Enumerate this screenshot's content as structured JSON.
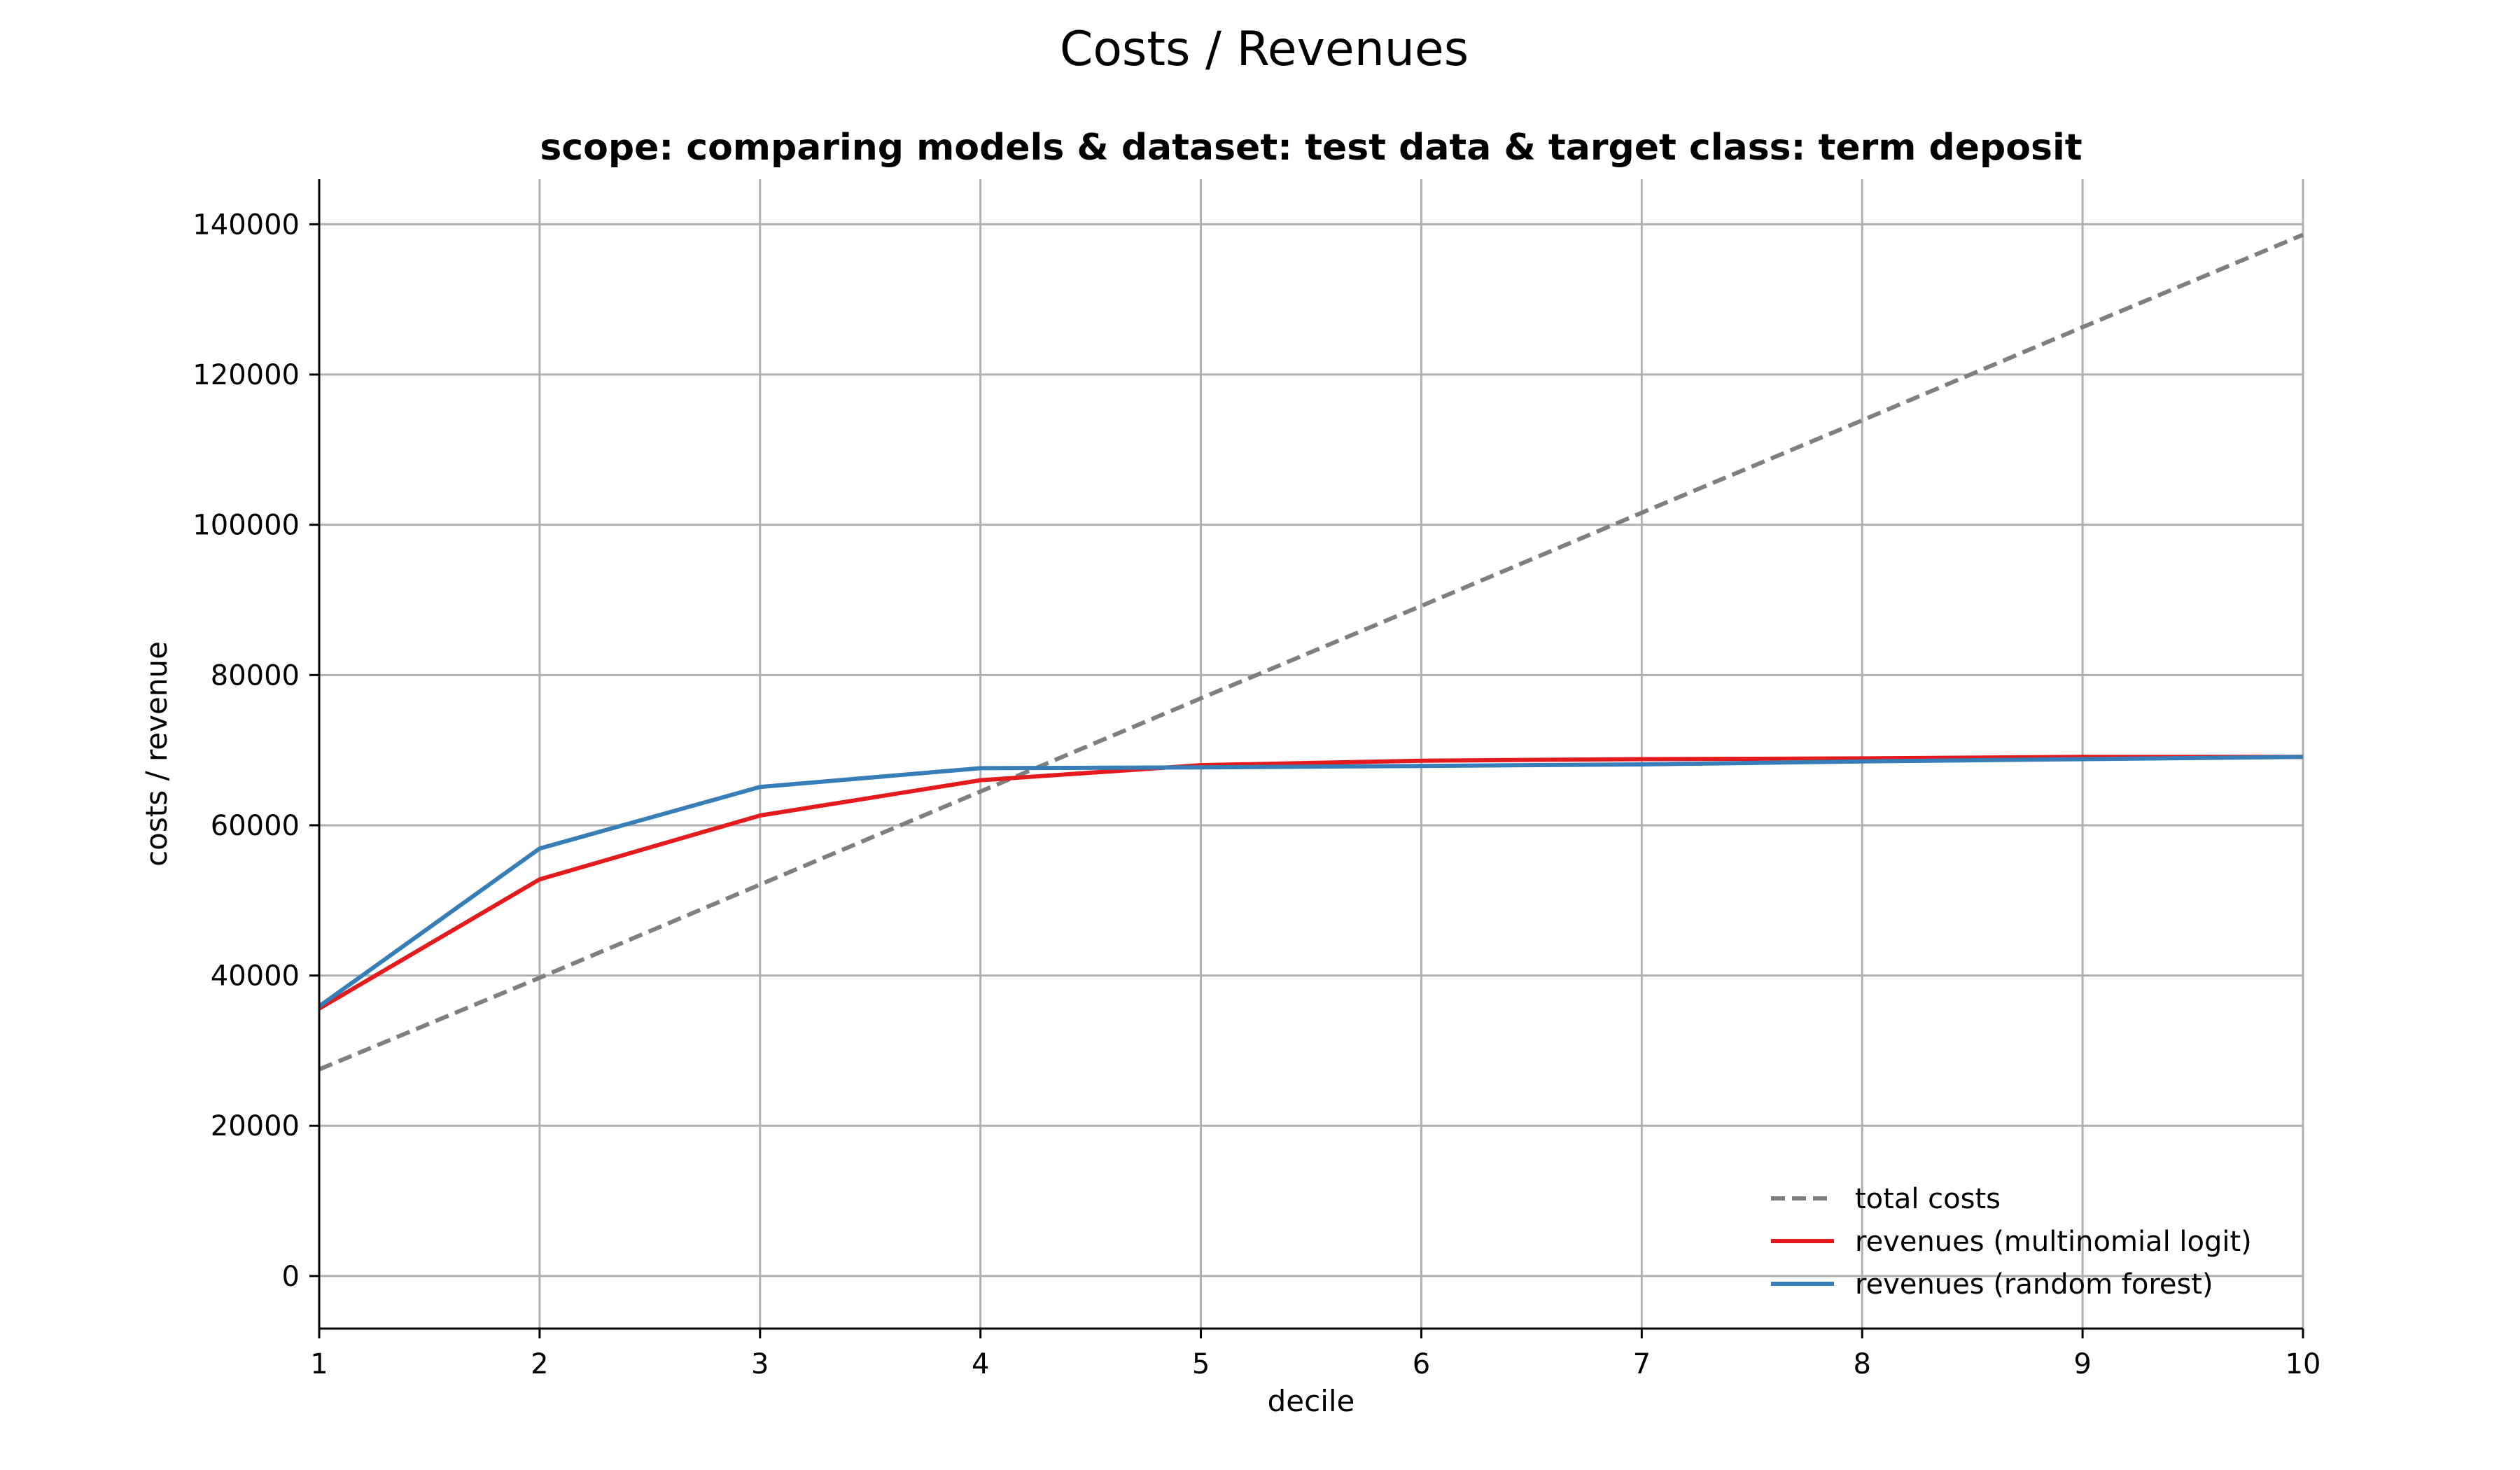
{
  "chart_data": {
    "type": "line",
    "title": "Costs / Revenues",
    "subtitle": "scope: comparing models & dataset: test data & target class: term deposit",
    "xlabel": "decile",
    "ylabel": "costs / revenue",
    "xlim": [
      1,
      10
    ],
    "ylim": [
      -7000,
      146000
    ],
    "x": [
      1,
      2,
      3,
      4,
      5,
      6,
      7,
      8,
      9,
      10
    ],
    "xticks": [
      "1",
      "2",
      "3",
      "4",
      "5",
      "6",
      "7",
      "8",
      "9",
      "10"
    ],
    "yticks": [
      0,
      20000,
      40000,
      60000,
      80000,
      100000,
      120000,
      140000
    ],
    "ytick_labels": [
      "0",
      "20000",
      "40000",
      "60000",
      "80000",
      "100000",
      "120000",
      "140000"
    ],
    "grid": true,
    "legend_position": "bottom-right",
    "series": [
      {
        "name": "total costs",
        "color": "#7f7f7f",
        "style": "dashed",
        "values": [
          27500,
          39700,
          52100,
          64500,
          76900,
          89200,
          101600,
          113900,
          126300,
          138600
        ]
      },
      {
        "name": "revenues (multinomial logit)",
        "color": "#e41a1c",
        "style": "solid",
        "values": [
          35600,
          52800,
          61300,
          66000,
          68000,
          68600,
          68800,
          68900,
          69100,
          69100
        ]
      },
      {
        "name": "revenues (random forest)",
        "color": "#377eb8",
        "style": "solid",
        "values": [
          35900,
          56900,
          65100,
          67600,
          67700,
          67900,
          68100,
          68500,
          68800,
          69100
        ]
      }
    ]
  }
}
